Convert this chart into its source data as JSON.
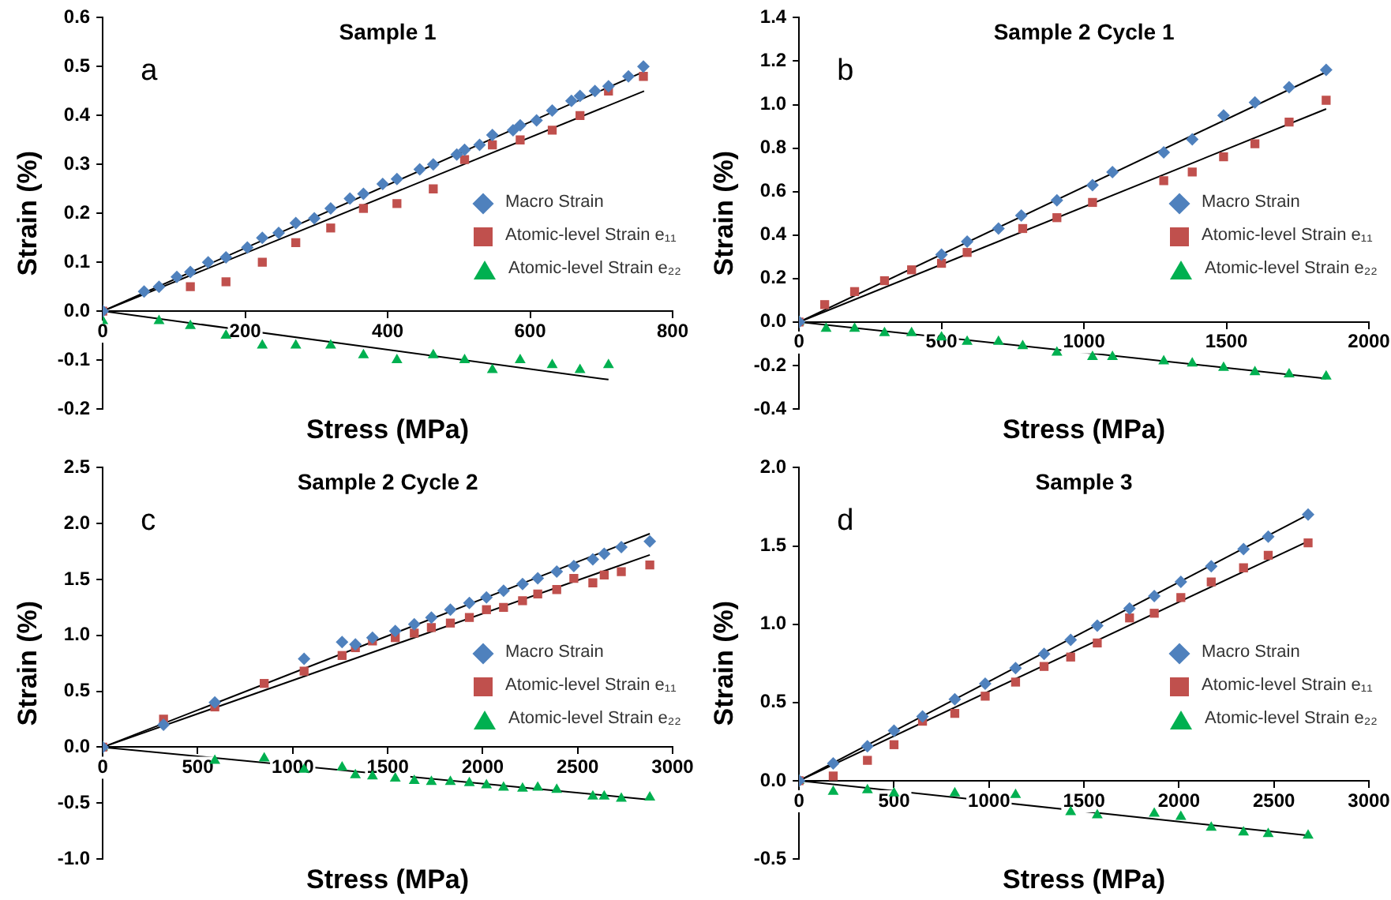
{
  "chart_data": [
    {
      "type": "scatter",
      "title": "Sample 1",
      "xlabel": "Stress (MPa)",
      "ylabel": "Strain (%)",
      "annotations": [
        "a"
      ],
      "legend": "right",
      "grid": false,
      "xlim": [
        0,
        800
      ],
      "xticks": [
        0,
        200,
        400,
        600,
        800
      ],
      "ylim": [
        -0.2,
        0.6
      ],
      "yticks": [
        -0.2,
        -0.1,
        {
          "value": 0,
          "label": "0.0"
        },
        0.1,
        0.2,
        0.3,
        0.4,
        0.5,
        0.6
      ],
      "series": [
        {
          "name": "Macro Strain",
          "color": "#4f81bd",
          "marker": "diamond",
          "x": [
            0,
            58,
            79,
            104,
            123,
            148,
            173,
            203,
            224,
            247,
            271,
            297,
            320,
            347,
            366,
            393,
            413,
            445,
            464,
            497,
            508,
            529,
            547,
            576,
            586,
            609,
            631,
            658,
            670,
            691,
            710,
            738,
            759
          ],
          "values": [
            0,
            0.04,
            0.05,
            0.07,
            0.08,
            0.1,
            0.11,
            0.13,
            0.15,
            0.16,
            0.18,
            0.19,
            0.21,
            0.23,
            0.24,
            0.26,
            0.27,
            0.29,
            0.3,
            0.32,
            0.33,
            0.34,
            0.36,
            0.37,
            0.38,
            0.39,
            0.41,
            0.43,
            0.44,
            0.45,
            0.46,
            0.48,
            0.5
          ]
        },
        {
          "name": "Atomic-level Strain e₁₁",
          "color": "#c0504d",
          "marker": "square",
          "x": [
            0,
            123,
            173,
            224,
            271,
            320,
            366,
            413,
            464,
            508,
            547,
            586,
            631,
            670,
            710,
            759
          ],
          "values": [
            0,
            0.05,
            0.06,
            0.1,
            0.14,
            0.17,
            0.21,
            0.22,
            0.25,
            0.31,
            0.34,
            0.35,
            0.37,
            0.4,
            0.45,
            0.48
          ]
        },
        {
          "name": "Atomic-level Strain e₂₂",
          "color": "#00b050",
          "marker": "triangle",
          "x": [
            0,
            79,
            123,
            173,
            224,
            271,
            320,
            366,
            413,
            464,
            508,
            547,
            586,
            631,
            670,
            710
          ],
          "values": [
            -0.02,
            -0.02,
            -0.03,
            -0.05,
            -0.07,
            -0.07,
            -0.07,
            -0.09,
            -0.1,
            -0.09,
            -0.1,
            -0.12,
            -0.1,
            -0.11,
            -0.12,
            -0.11
          ]
        },
        {
          "type": "line",
          "color": "#000000",
          "marker": "none",
          "x": [
            0,
            760
          ],
          "values": [
            0,
            0.49
          ]
        },
        {
          "type": "line",
          "color": "#000000",
          "marker": "none",
          "x": [
            0,
            760
          ],
          "values": [
            0,
            0.45
          ]
        },
        {
          "type": "line",
          "color": "#000000",
          "marker": "none",
          "x": [
            0,
            710
          ],
          "values": [
            0,
            -0.14
          ]
        }
      ]
    },
    {
      "type": "scatter",
      "title": "Sample 2 Cycle 1",
      "xlabel": "Stress (MPa)",
      "ylabel": "Strain (%)",
      "annotations": [
        "b"
      ],
      "legend": "right",
      "grid": false,
      "xlim": [
        0,
        2000
      ],
      "xticks": [
        0,
        500,
        1000,
        1500,
        2000
      ],
      "ylim": [
        -0.4,
        1.4
      ],
      "yticks": [
        -0.4,
        -0.2,
        {
          "value": 0,
          "label": "0.0"
        },
        0.2,
        0.4,
        0.6,
        0.8,
        {
          "value": 1,
          "label": "1.0"
        },
        1.2,
        1.4
      ],
      "series": [
        {
          "name": "Macro Strain",
          "color": "#4f81bd",
          "marker": "diamond",
          "x": [
            0,
            500,
            590,
            700,
            780,
            905,
            1030,
            1100,
            1280,
            1380,
            1490,
            1600,
            1720,
            1850
          ],
          "values": [
            0,
            0.31,
            0.37,
            0.43,
            0.49,
            0.56,
            0.63,
            0.69,
            0.78,
            0.84,
            0.95,
            1.01,
            1.08,
            1.16
          ]
        },
        {
          "name": "Atomic-level Strain e₁₁",
          "color": "#c0504d",
          "marker": "square",
          "x": [
            0,
            90,
            195,
            300,
            395,
            500,
            590,
            785,
            905,
            1030,
            1280,
            1380,
            1490,
            1600,
            1720,
            1850
          ],
          "values": [
            0,
            0.08,
            0.14,
            0.19,
            0.24,
            0.27,
            0.32,
            0.43,
            0.48,
            0.55,
            0.65,
            0.69,
            0.76,
            0.82,
            0.92,
            1.02
          ]
        },
        {
          "name": "Atomic-level Strain e₂₂",
          "color": "#00b050",
          "marker": "triangle",
          "x": [
            0,
            95,
            195,
            300,
            395,
            500,
            590,
            700,
            785,
            905,
            1030,
            1100,
            1280,
            1380,
            1490,
            1600,
            1720,
            1850
          ],
          "values": [
            0,
            -0.03,
            -0.03,
            -0.05,
            -0.05,
            -0.07,
            -0.09,
            -0.09,
            -0.11,
            -0.14,
            -0.16,
            -0.16,
            -0.18,
            -0.19,
            -0.21,
            -0.23,
            -0.24,
            -0.25
          ]
        },
        {
          "type": "line",
          "color": "#000000",
          "marker": "none",
          "x": [
            0,
            1850
          ],
          "values": [
            0,
            1.15
          ]
        },
        {
          "type": "line",
          "color": "#000000",
          "marker": "none",
          "x": [
            0,
            1850
          ],
          "values": [
            0,
            0.98
          ]
        },
        {
          "type": "line",
          "color": "#000000",
          "marker": "none",
          "x": [
            0,
            1850
          ],
          "values": [
            0,
            -0.26
          ]
        }
      ]
    },
    {
      "type": "scatter",
      "title": "Sample 2 Cycle 2",
      "xlabel": "Stress (MPa)",
      "ylabel": "Strain (%)",
      "annotations": [
        "c"
      ],
      "legend": "right",
      "grid": false,
      "xlim": [
        0,
        3000
      ],
      "xticks": [
        0,
        500,
        1000,
        1500,
        2000,
        2500,
        3000
      ],
      "ylim": [
        -1,
        2.5
      ],
      "yticks": [
        {
          "value": -1,
          "label": "-1.0"
        },
        -0.5,
        {
          "value": 0,
          "label": "0.0"
        },
        0.5,
        {
          "value": 1,
          "label": "1.0"
        },
        1.5,
        {
          "value": 2,
          "label": "2.0"
        },
        2.5
      ],
      "series": [
        {
          "name": "Macro Strain",
          "color": "#4f81bd",
          "marker": "diamond",
          "x": [
            0,
            320,
            590,
            1060,
            1260,
            1330,
            1420,
            1540,
            1640,
            1730,
            1830,
            1930,
            2020,
            2110,
            2210,
            2290,
            2390,
            2480,
            2580,
            2640,
            2730,
            2880
          ],
          "values": [
            0,
            0.2,
            0.4,
            0.79,
            0.94,
            0.92,
            0.98,
            1.04,
            1.1,
            1.16,
            1.23,
            1.29,
            1.34,
            1.4,
            1.46,
            1.51,
            1.57,
            1.62,
            1.68,
            1.73,
            1.79,
            1.84
          ]
        },
        {
          "name": "Atomic-level Strain e₁₁",
          "color": "#c0504d",
          "marker": "square",
          "x": [
            0,
            320,
            590,
            850,
            1060,
            1260,
            1330,
            1420,
            1540,
            1640,
            1730,
            1830,
            1930,
            2020,
            2110,
            2210,
            2290,
            2390,
            2480,
            2580,
            2640,
            2730,
            2880
          ],
          "values": [
            0,
            0.25,
            0.36,
            0.57,
            0.68,
            0.82,
            0.89,
            0.95,
            0.98,
            1.02,
            1.07,
            1.11,
            1.16,
            1.23,
            1.25,
            1.31,
            1.37,
            1.41,
            1.51,
            1.47,
            1.54,
            1.57,
            1.63
          ]
        },
        {
          "name": "Atomic-level Strain e₂₂",
          "color": "#00b050",
          "marker": "triangle",
          "x": [
            0,
            590,
            850,
            1060,
            1260,
            1330,
            1420,
            1540,
            1640,
            1730,
            1830,
            1930,
            2020,
            2110,
            2210,
            2290,
            2390,
            2580,
            2640,
            2730,
            2880
          ],
          "values": [
            0,
            -0.12,
            -0.1,
            -0.2,
            -0.18,
            -0.25,
            -0.26,
            -0.28,
            -0.3,
            -0.31,
            -0.31,
            -0.32,
            -0.34,
            -0.36,
            -0.37,
            -0.36,
            -0.38,
            -0.44,
            -0.44,
            -0.46,
            -0.45
          ]
        },
        {
          "type": "line",
          "color": "#000000",
          "marker": "none",
          "x": [
            0,
            2880
          ],
          "values": [
            0,
            1.91
          ]
        },
        {
          "type": "line",
          "color": "#000000",
          "marker": "none",
          "x": [
            0,
            2880
          ],
          "values": [
            0,
            1.72
          ]
        },
        {
          "type": "line",
          "color": "#000000",
          "marker": "none",
          "x": [
            0,
            2880
          ],
          "values": [
            0,
            -0.47
          ]
        }
      ]
    },
    {
      "type": "scatter",
      "title": "Sample 3",
      "xlabel": "Stress (MPa)",
      "ylabel": "Strain (%)",
      "annotations": [
        "d"
      ],
      "legend": "right",
      "grid": false,
      "xlim": [
        0,
        3000
      ],
      "xticks": [
        0,
        500,
        1000,
        1500,
        2000,
        2500,
        3000
      ],
      "ylim": [
        -0.5,
        2
      ],
      "yticks": [
        -0.5,
        {
          "value": 0,
          "label": "0.0"
        },
        0.5,
        {
          "value": 1,
          "label": "1.0"
        },
        1.5,
        {
          "value": 2,
          "label": "2.0"
        }
      ],
      "series": [
        {
          "name": "Macro Strain",
          "color": "#4f81bd",
          "marker": "diamond",
          "x": [
            0,
            180,
            360,
            500,
            650,
            820,
            980,
            1140,
            1290,
            1430,
            1570,
            1740,
            1870,
            2010,
            2170,
            2340,
            2470,
            2680
          ],
          "values": [
            0,
            0.11,
            0.22,
            0.32,
            0.41,
            0.52,
            0.62,
            0.72,
            0.81,
            0.9,
            0.99,
            1.1,
            1.18,
            1.27,
            1.37,
            1.48,
            1.56,
            1.7
          ]
        },
        {
          "name": "Atomic-level Strain e₁₁",
          "color": "#c0504d",
          "marker": "square",
          "x": [
            0,
            180,
            360,
            500,
            650,
            820,
            980,
            1140,
            1290,
            1430,
            1570,
            1740,
            1870,
            2010,
            2170,
            2340,
            2470,
            2680
          ],
          "values": [
            0,
            0.03,
            0.13,
            0.23,
            0.38,
            0.43,
            0.54,
            0.63,
            0.73,
            0.79,
            0.88,
            1.04,
            1.07,
            1.17,
            1.27,
            1.36,
            1.44,
            1.52
          ]
        },
        {
          "name": "Atomic-level Strain e₂₂",
          "color": "#00b050",
          "marker": "triangle",
          "x": [
            0,
            180,
            360,
            500,
            820,
            1140,
            1430,
            1570,
            1870,
            2010,
            2170,
            2340,
            2470,
            2680
          ],
          "values": [
            0,
            -0.07,
            -0.06,
            -0.08,
            -0.08,
            -0.09,
            -0.2,
            -0.22,
            -0.21,
            -0.23,
            -0.3,
            -0.33,
            -0.34,
            -0.35
          ]
        },
        {
          "type": "line",
          "color": "#000000",
          "marker": "none",
          "x": [
            0,
            2680
          ],
          "values": [
            0,
            1.7
          ]
        },
        {
          "type": "line",
          "color": "#000000",
          "marker": "none",
          "x": [
            0,
            2680
          ],
          "values": [
            0,
            1.53
          ]
        },
        {
          "type": "line",
          "color": "#000000",
          "marker": "none",
          "x": [
            0,
            2680
          ],
          "values": [
            0,
            -0.35
          ]
        }
      ]
    }
  ]
}
